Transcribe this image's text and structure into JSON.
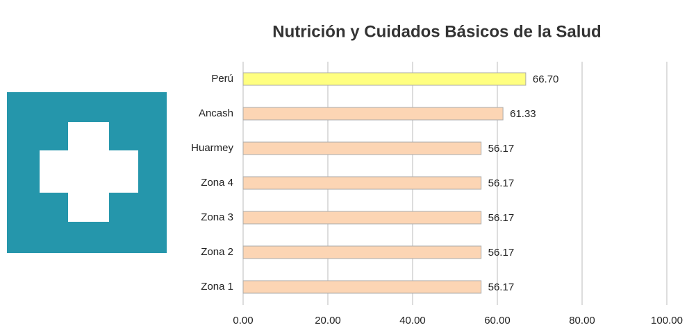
{
  "chart_data": {
    "type": "hbar",
    "title": "Nutrición y Cuidados Básicos de la Salud",
    "categories": [
      "Perú",
      "Ancash",
      "Huarmey",
      "Zona 4",
      "Zona 3",
      "Zona 2",
      "Zona 1"
    ],
    "values": [
      66.7,
      61.33,
      56.17,
      56.17,
      56.17,
      56.17,
      56.17
    ],
    "value_labels": [
      "66.70",
      "61.33",
      "56.17",
      "56.17",
      "56.17",
      "56.17",
      "56.17"
    ],
    "colors": [
      "#ffff80",
      "#fcd5b4",
      "#fcd5b4",
      "#fcd5b4",
      "#fcd5b4",
      "#fcd5b4",
      "#fcd5b4"
    ],
    "xlim": [
      0,
      100
    ],
    "xticks": [
      {
        "value": 0,
        "label": "0.00"
      },
      {
        "value": 20,
        "label": "20.00"
      },
      {
        "value": 40,
        "label": "40.00"
      },
      {
        "value": 60,
        "label": "60.00"
      },
      {
        "value": 80,
        "label": "80.00"
      },
      {
        "value": 100,
        "label": "100.00"
      }
    ],
    "grid": true
  }
}
